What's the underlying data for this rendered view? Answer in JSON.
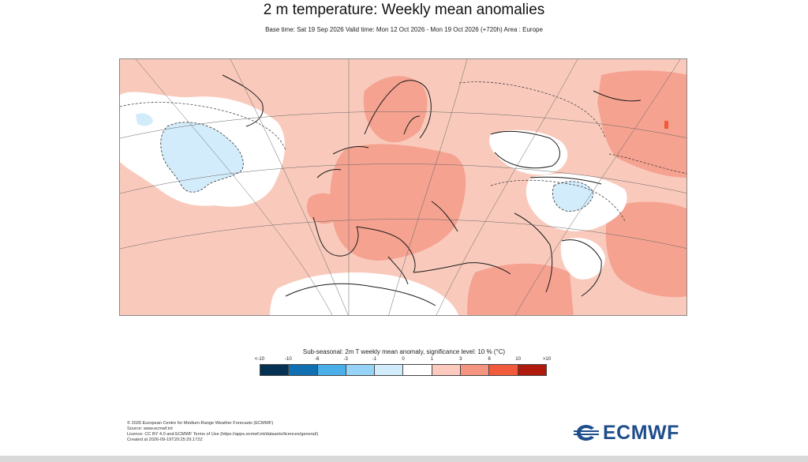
{
  "title": "2 m temperature: Weekly mean anomalies",
  "subtitle": "Base time: Sat 19 Sep 2026 Valid time: Mon 12 Oct 2026 - Mon 19 Oct 2026 (+720h) Area : Europe",
  "map": {
    "area": "Europe",
    "colors": {
      "sea_background": "#f9cabc",
      "neutral": "#ffffff",
      "warm_1": "#f9cabc",
      "warm_2": "#f5a290",
      "cool_1": "#d3ecfb",
      "coast": "#1a1a1a",
      "grid": "#666666"
    }
  },
  "legend": {
    "title": "Sub-seasonal: 2m T weekly mean anomaly, significance level: 10 % (°C)",
    "ticks": [
      "<-10",
      "-10",
      "-6",
      "-3",
      "-1",
      "0",
      "1",
      "3",
      "6",
      "10",
      ">10"
    ],
    "colors": [
      "#053152",
      "#0f6fb0",
      "#4aaee8",
      "#97d3f7",
      "#d3ecfb",
      "#ffffff",
      "#fbc9bd",
      "#f6957f",
      "#f15a3a",
      "#b01a0c",
      "#5a0606"
    ]
  },
  "footer": {
    "line1": "© 2026 European Centre for Medium-Range Weather Forecasts (ECMWF)",
    "line2": "Source: www.ecmwf.int",
    "line3": "Licence: CC BY 4.0 and ECMWF Terms of Use (https://apps.ecmwf.int/datasets/licences/general/)",
    "line4": "Created at 2026-09-19T20:25:29.172Z"
  },
  "logo": {
    "text": "ECMWF",
    "icon": "ecmwf-waves-icon",
    "color": "#1f4e8c"
  }
}
